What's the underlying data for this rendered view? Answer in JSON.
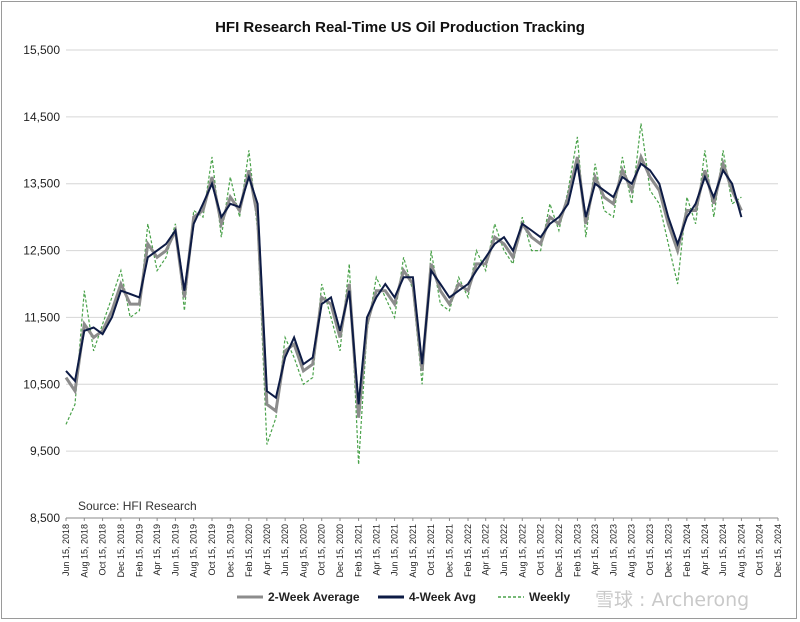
{
  "chart_data": {
    "type": "line",
    "title": "HFI Research Real-Time US Oil Production Tracking",
    "source": "Source: HFI Research",
    "watermark": "雪球 : Archerong",
    "ylim": [
      8500,
      15500
    ],
    "y_ticks": [
      "8,500",
      "9,500",
      "10,500",
      "11,500",
      "12,500",
      "13,500",
      "14,500",
      "15,500"
    ],
    "y_tick_values": [
      8500,
      9500,
      10500,
      11500,
      12500,
      13500,
      14500,
      15500
    ],
    "x_start": "2018-06-15",
    "x_end": "2024-12-15",
    "x_ticks": [
      "Jun 15, 2018",
      "Aug 15, 2018",
      "Oct 15, 2018",
      "Dec 15, 2018",
      "Feb 15, 2019",
      "Apr 15, 2019",
      "Jun 15, 2019",
      "Aug 15, 2019",
      "Oct 15, 2019",
      "Dec 15, 2019",
      "Feb 15, 2020",
      "Apr 15, 2020",
      "Jun 15, 2020",
      "Aug 15, 2020",
      "Oct 15, 2020",
      "Dec 15, 2020",
      "Feb 15, 2021",
      "Apr 15, 2021",
      "Jun 15, 2021",
      "Aug 15, 2021",
      "Oct 15, 2021",
      "Dec 15, 2021",
      "Feb 15, 2022",
      "Apr 15, 2022",
      "Jun 15, 2022",
      "Aug 15, 2022",
      "Oct 15, 2022",
      "Dec 15, 2022",
      "Feb 15, 2023",
      "Apr 15, 2023",
      "Jun 15, 2023",
      "Aug 15, 2023",
      "Oct 15, 2023",
      "Dec 15, 2023",
      "Feb 15, 2024",
      "Apr 15, 2024",
      "Jun 15, 2024",
      "Aug 15, 2024",
      "Oct 15, 2024",
      "Dec 15, 2024"
    ],
    "grid": true,
    "legend_position": "bottom",
    "series": [
      {
        "name": "2-Week Average",
        "color": "#8c8c8c",
        "style": "solid"
      },
      {
        "name": "4-Week Avg",
        "color": "#0d1b45",
        "style": "solid"
      },
      {
        "name": "Weekly",
        "color": "#4aa24a",
        "style": "dashed"
      }
    ],
    "weekly_series_dates": [
      "2018-06-15",
      "2018-07-15",
      "2018-08-15",
      "2018-09-15",
      "2018-10-15",
      "2018-11-15",
      "2018-12-15",
      "2019-01-15",
      "2019-02-15",
      "2019-03-15",
      "2019-04-15",
      "2019-05-15",
      "2019-06-15",
      "2019-07-15",
      "2019-08-15",
      "2019-09-15",
      "2019-10-15",
      "2019-11-15",
      "2019-12-15",
      "2020-01-15",
      "2020-02-15",
      "2020-03-15",
      "2020-04-15",
      "2020-05-15",
      "2020-06-15",
      "2020-07-15",
      "2020-08-15",
      "2020-09-15",
      "2020-10-15",
      "2020-11-15",
      "2020-12-15",
      "2021-01-15",
      "2021-02-15",
      "2021-03-15",
      "2021-04-15",
      "2021-05-15",
      "2021-06-15",
      "2021-07-15",
      "2021-08-15",
      "2021-09-15",
      "2021-10-15",
      "2021-11-15",
      "2021-12-15",
      "2022-01-15",
      "2022-02-15",
      "2022-03-15",
      "2022-04-15",
      "2022-05-15",
      "2022-06-15",
      "2022-07-15",
      "2022-08-15",
      "2022-09-15",
      "2022-10-15",
      "2022-11-15",
      "2022-12-15",
      "2023-01-15",
      "2023-02-15",
      "2023-03-15",
      "2023-04-15",
      "2023-05-15",
      "2023-06-15",
      "2023-07-15",
      "2023-08-15",
      "2023-09-15",
      "2023-10-15",
      "2023-11-15",
      "2023-12-15",
      "2024-01-15",
      "2024-02-15",
      "2024-03-15",
      "2024-04-15",
      "2024-05-15",
      "2024-06-15",
      "2024-07-15",
      "2024-08-15"
    ],
    "four_week_avg_values": [
      10700,
      10550,
      11300,
      11350,
      11250,
      11500,
      11900,
      11850,
      11800,
      12400,
      12500,
      12600,
      12800,
      11900,
      12900,
      13200,
      13500,
      13000,
      13200,
      13150,
      13600,
      13200,
      10400,
      10300,
      10900,
      11200,
      10800,
      10900,
      11700,
      11800,
      11300,
      11900,
      10200,
      11500,
      11800,
      12000,
      11800,
      12100,
      12100,
      10800,
      12200,
      12000,
      11800,
      11900,
      12000,
      12200,
      12400,
      12600,
      12700,
      12500,
      12900,
      12800,
      12700,
      12900,
      13000,
      13200,
      13800,
      13000,
      13500,
      13400,
      13300,
      13600,
      13500,
      13800,
      13700,
      13500,
      13000,
      12600,
      13000,
      13200,
      13600,
      13300,
      13700,
      13500,
      13000
    ],
    "two_week_avg_values": [
      10600,
      10400,
      11400,
      11200,
      11300,
      11600,
      12000,
      11700,
      11700,
      12600,
      12400,
      12500,
      12800,
      11800,
      13000,
      13100,
      13600,
      12900,
      13300,
      13100,
      13700,
      13000,
      10200,
      10100,
      11000,
      11100,
      10700,
      10800,
      11800,
      11700,
      11200,
      12000,
      10000,
      11400,
      11900,
      11900,
      11700,
      12200,
      12000,
      10700,
      12300,
      11900,
      11700,
      12000,
      11900,
      12300,
      12300,
      12700,
      12600,
      12400,
      12900,
      12700,
      12600,
      13000,
      12900,
      13300,
      13900,
      12900,
      13600,
      13300,
      13200,
      13700,
      13400,
      13900,
      13600,
      13400,
      12900,
      12500,
      13100,
      13100,
      13700,
      13200,
      13800,
      13400,
      13100
    ],
    "weekly_values": [
      9900,
      10200,
      11900,
      11000,
      11400,
      11800,
      12200,
      11500,
      11600,
      12900,
      12200,
      12400,
      12900,
      11600,
      13100,
      13000,
      13900,
      12700,
      13600,
      13000,
      14000,
      12800,
      9600,
      10000,
      11200,
      10900,
      10500,
      10600,
      12000,
      11500,
      11000,
      12300,
      9300,
      11300,
      12100,
      11800,
      11500,
      12400,
      11900,
      10500,
      12500,
      11700,
      11600,
      12100,
      11800,
      12500,
      12200,
      12900,
      12500,
      12300,
      13000,
      12500,
      12500,
      13200,
      12800,
      13400,
      14200,
      12700,
      13800,
      13100,
      13000,
      13900,
      13200,
      14400,
      13400,
      13200,
      12600,
      12000,
      13300,
      12900,
      14000,
      13000,
      14000,
      13200,
      13300
    ]
  }
}
